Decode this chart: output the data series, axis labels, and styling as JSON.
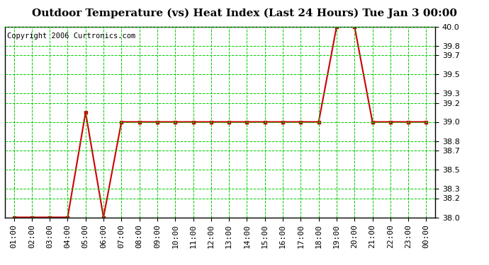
{
  "title": "Outdoor Temperature (vs) Heat Index (Last 24 Hours) Tue Jan 3 00:00",
  "copyright_text": "Copyright 2006 Curtronics.com",
  "x_labels": [
    "01:00",
    "02:00",
    "03:00",
    "04:00",
    "05:00",
    "06:00",
    "07:00",
    "08:00",
    "09:00",
    "10:00",
    "11:00",
    "12:00",
    "13:00",
    "14:00",
    "15:00",
    "16:00",
    "17:00",
    "18:00",
    "19:00",
    "20:00",
    "21:00",
    "22:00",
    "23:00",
    "00:00"
  ],
  "y_values": [
    38.0,
    38.0,
    38.0,
    38.0,
    39.1,
    38.0,
    39.0,
    39.0,
    39.0,
    39.0,
    39.0,
    39.0,
    39.0,
    39.0,
    39.0,
    39.0,
    39.0,
    39.0,
    40.0,
    40.0,
    39.0,
    39.0,
    39.0,
    39.0
  ],
  "ylim": [
    38.0,
    40.0
  ],
  "ytick_values": [
    38.0,
    38.2,
    38.3,
    38.5,
    38.7,
    38.8,
    39.0,
    39.2,
    39.3,
    39.5,
    39.7,
    39.8,
    40.0
  ],
  "line_color": "#cc0000",
  "marker": "s",
  "marker_size": 3,
  "bg_color": "#ffffff",
  "plot_bg_color": "#ffffff",
  "grid_color": "#00cc00",
  "title_fontsize": 11,
  "tick_fontsize": 8,
  "copyright_fontsize": 7.5
}
